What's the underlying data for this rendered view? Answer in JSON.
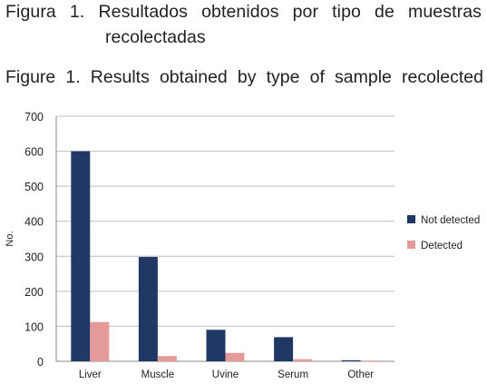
{
  "captions": {
    "es_line1": "Figura 1. Resultados obtenidos por tipo de muestras",
    "es_line2": "recolectadas",
    "en": "Figure 1. Results obtained by type of sample recolected"
  },
  "chart_data": {
    "type": "bar",
    "categories": [
      "Liver",
      "Muscle",
      "Uvine",
      "Serum",
      "Other"
    ],
    "series": [
      {
        "name": "Not detected",
        "color": "#1f3864",
        "values": [
          600,
          298,
          90,
          69,
          3
        ]
      },
      {
        "name": "Detected",
        "color": "#e59a9a",
        "values": [
          112,
          15,
          24,
          6,
          2
        ]
      }
    ],
    "xlabel": "",
    "ylabel": "No.",
    "ylim": [
      0,
      700
    ],
    "yticks": [
      0,
      100,
      200,
      300,
      400,
      500,
      600,
      700
    ],
    "grid": true,
    "legend_position": "right"
  }
}
